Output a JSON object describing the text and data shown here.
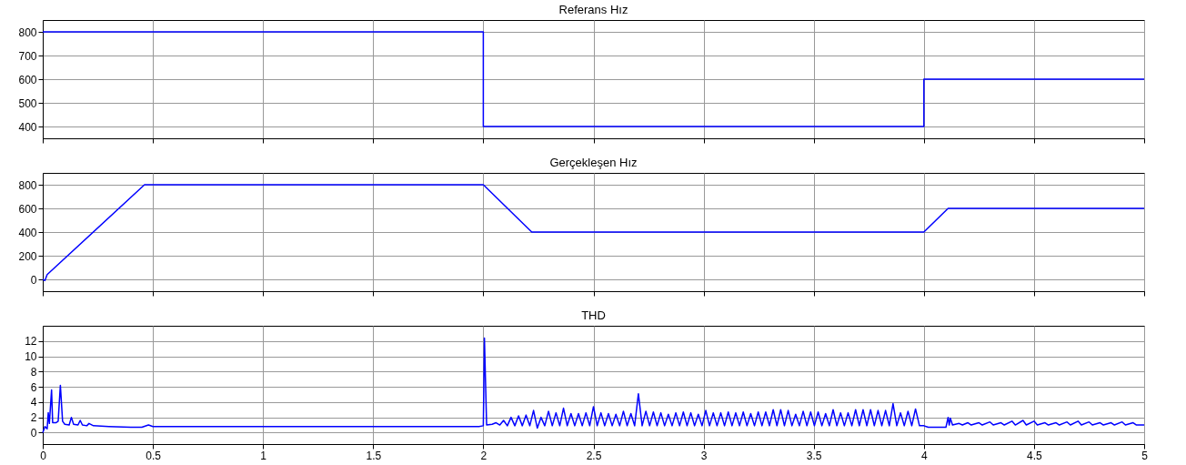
{
  "chart_data": [
    {
      "type": "line",
      "title": "Referans Hız",
      "color": "#0000ff",
      "grid": true,
      "tick_labels": "y",
      "x": [
        0,
        2,
        2,
        4,
        4,
        5
      ],
      "values": [
        800,
        800,
        400,
        400,
        600,
        600
      ],
      "xlim": [
        0,
        5
      ],
      "xticks": [
        0,
        0.5,
        1,
        1.5,
        2,
        2.5,
        3,
        3.5,
        4,
        4.5,
        5
      ],
      "ylim": [
        350,
        850
      ],
      "yticks": [
        400,
        500,
        600,
        700,
        800
      ]
    },
    {
      "type": "line",
      "title": "Gerçekleşen Hız",
      "color": "#0000ff",
      "grid": true,
      "tick_labels": "y",
      "x": [
        0,
        0.01,
        0.02,
        0.462,
        2.0,
        2.22,
        4.0,
        4.11,
        5
      ],
      "values": [
        0,
        -10,
        40,
        800,
        800,
        400,
        400,
        600,
        600
      ],
      "xlim": [
        0,
        5
      ],
      "xticks": [
        0,
        0.5,
        1,
        1.5,
        2,
        2.5,
        3,
        3.5,
        4,
        4.5,
        5
      ],
      "ylim": [
        -100,
        900
      ],
      "yticks": [
        0,
        200,
        400,
        600,
        800
      ]
    },
    {
      "type": "line",
      "title": "THD",
      "color": "#0000ff",
      "grid": true,
      "x": [
        0,
        0.01,
        0.02,
        0.025,
        0.03,
        0.04,
        0.045,
        0.06,
        0.07,
        0.08,
        0.09,
        0.1,
        0.12,
        0.13,
        0.14,
        0.16,
        0.17,
        0.18,
        0.2,
        0.21,
        0.23,
        0.3,
        0.4,
        0.45,
        0.48,
        0.5,
        1,
        1.5,
        1.98,
        2.0,
        2.005,
        2.015,
        2.04,
        2.058,
        2.075,
        2.092,
        2.109,
        2.126,
        2.143,
        2.16,
        2.177,
        2.194,
        2.211,
        2.228,
        2.245,
        2.262,
        2.279,
        2.296,
        2.313,
        2.33,
        2.347,
        2.364,
        2.381,
        2.398,
        2.415,
        2.432,
        2.449,
        2.466,
        2.483,
        2.5,
        2.517,
        2.534,
        2.551,
        2.568,
        2.585,
        2.602,
        2.619,
        2.636,
        2.653,
        2.67,
        2.687,
        2.704,
        2.721,
        2.738,
        2.755,
        2.772,
        2.789,
        2.806,
        2.823,
        2.84,
        2.857,
        2.874,
        2.891,
        2.908,
        2.925,
        2.942,
        2.959,
        2.976,
        2.993,
        3.01,
        3.027,
        3.044,
        3.061,
        3.078,
        3.095,
        3.112,
        3.129,
        3.146,
        3.163,
        3.18,
        3.197,
        3.214,
        3.231,
        3.248,
        3.265,
        3.282,
        3.299,
        3.316,
        3.333,
        3.35,
        3.367,
        3.384,
        3.401,
        3.418,
        3.435,
        3.452,
        3.469,
        3.486,
        3.503,
        3.52,
        3.537,
        3.554,
        3.571,
        3.588,
        3.605,
        3.622,
        3.639,
        3.656,
        3.673,
        3.69,
        3.707,
        3.724,
        3.741,
        3.758,
        3.775,
        3.792,
        3.809,
        3.826,
        3.843,
        3.86,
        3.877,
        3.894,
        3.911,
        3.928,
        3.945,
        3.962,
        3.98,
        4.0,
        4.02,
        4.1,
        4.11,
        4.115,
        4.12,
        4.13,
        4.16,
        4.175,
        4.2,
        4.215,
        4.25,
        4.265,
        4.3,
        4.315,
        4.35,
        4.365,
        4.4,
        4.415,
        4.45,
        4.465,
        4.5,
        4.515,
        4.55,
        4.565,
        4.6,
        4.615,
        4.65,
        4.665,
        4.7,
        4.715,
        4.75,
        4.765,
        4.8,
        4.815,
        4.85,
        4.865,
        4.9,
        4.915,
        4.95,
        4.965,
        5
      ],
      "values": [
        0,
        0.8,
        0.5,
        2.6,
        1.2,
        5.6,
        1.3,
        1.3,
        1.5,
        6.2,
        1.5,
        1.1,
        1.0,
        2.0,
        1.1,
        1.0,
        1.6,
        1.0,
        0.9,
        1.2,
        0.9,
        0.8,
        0.7,
        0.7,
        1.0,
        0.8,
        0.8,
        0.8,
        0.8,
        0.9,
        12.4,
        1.0,
        1.1,
        1.3,
        1.0,
        1.6,
        0.9,
        2.0,
        0.9,
        2.2,
        0.9,
        2.3,
        0.9,
        2.9,
        0.6,
        2.0,
        0.9,
        2.8,
        0.9,
        2.6,
        0.9,
        3.2,
        0.9,
        2.5,
        0.9,
        2.5,
        0.9,
        2.6,
        0.9,
        3.4,
        0.9,
        2.6,
        0.9,
        2.5,
        0.9,
        2.4,
        0.9,
        2.8,
        0.9,
        2.5,
        0.9,
        5.1,
        0.9,
        2.8,
        0.9,
        2.7,
        0.9,
        2.6,
        0.9,
        2.4,
        0.9,
        2.6,
        0.9,
        2.7,
        0.9,
        2.6,
        0.9,
        2.4,
        0.9,
        2.9,
        0.9,
        2.6,
        0.9,
        2.6,
        0.9,
        2.7,
        0.9,
        2.6,
        0.9,
        2.7,
        0.9,
        2.5,
        0.9,
        2.7,
        0.9,
        2.7,
        0.9,
        3.0,
        0.9,
        3.0,
        0.9,
        2.9,
        0.9,
        2.4,
        0.9,
        2.8,
        0.9,
        2.7,
        0.9,
        2.7,
        0.9,
        2.5,
        0.9,
        3.0,
        0.9,
        2.6,
        0.9,
        2.6,
        0.9,
        3.0,
        0.9,
        3.0,
        0.9,
        3.0,
        0.9,
        2.9,
        0.9,
        2.9,
        0.9,
        3.8,
        0.9,
        2.6,
        0.9,
        2.8,
        0.9,
        3.1,
        0.9,
        0.9,
        0.7,
        0.7,
        2.0,
        1.0,
        1.9,
        1.0,
        1.2,
        1.0,
        1.3,
        1.0,
        1.3,
        1.0,
        1.4,
        1.0,
        1.3,
        1.0,
        1.5,
        1.0,
        1.6,
        1.0,
        1.5,
        1.0,
        1.3,
        1.0,
        1.3,
        1.0,
        1.4,
        1.0,
        1.5,
        1.0,
        1.4,
        1.0,
        1.3,
        1.0,
        1.3,
        1.0,
        1.4,
        1.0,
        1.3,
        1.0,
        1.0
      ],
      "xlim": [
        0,
        5
      ],
      "xticks": [
        0,
        0.5,
        1,
        1.5,
        2,
        2.5,
        3,
        3.5,
        4,
        4.5,
        5
      ],
      "ylim": [
        -1.5,
        14
      ],
      "yticks": [
        0,
        2,
        4,
        6,
        8,
        10,
        12
      ]
    }
  ]
}
